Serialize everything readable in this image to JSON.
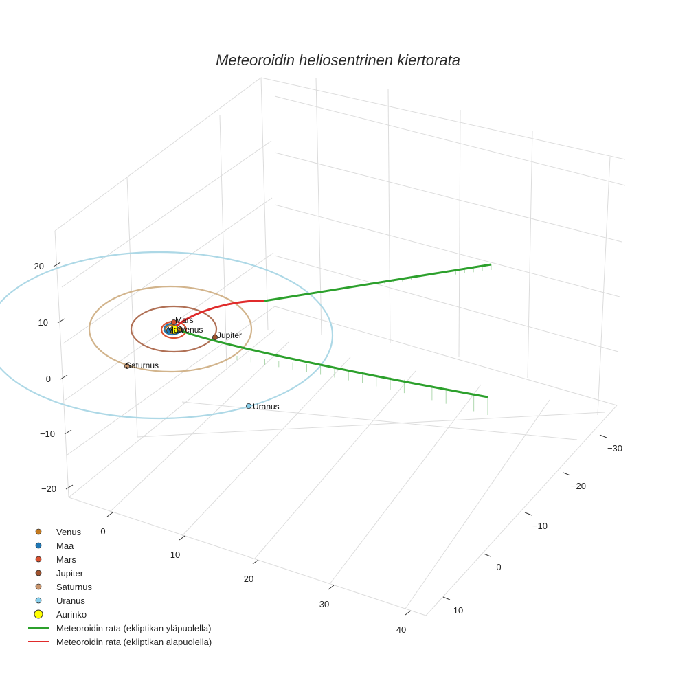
{
  "chart_data": {
    "type": "scatter3d",
    "title": "Meteoroidin heliosentrinen kiertorata",
    "axes": {
      "x": {
        "ticks": [
          0,
          10,
          20,
          30,
          40
        ]
      },
      "y": {
        "ticks": [
          -30,
          -20,
          -10,
          0,
          10
        ]
      },
      "z": {
        "ticks": [
          -20,
          -10,
          0,
          10,
          20
        ]
      }
    },
    "sun": {
      "name": "Aurinko",
      "color": "#ffff00"
    },
    "planets": [
      {
        "name": "Venus",
        "color": "#c2791f",
        "orbit_color": "#c2791f"
      },
      {
        "name": "Maa",
        "color": "#1f77b4",
        "orbit_color": "#1f77b4"
      },
      {
        "name": "Mars",
        "color": "#d9502f",
        "orbit_color": "#d9502f"
      },
      {
        "name": "Jupiter",
        "color": "#a0522d",
        "orbit_color": "#b07055"
      },
      {
        "name": "Saturnus",
        "color": "#c8956d",
        "orbit_color": "#d2b48c"
      },
      {
        "name": "Uranus",
        "color": "#87ceeb",
        "orbit_color": "#add8e6"
      }
    ],
    "trajectory": {
      "above_label": "Meteoroidin rata (ekliptikan yläpuolella)",
      "below_label": "Meteoroidin rata (ekliptikan alapuolella)",
      "above_color": "#2ca02c",
      "below_color": "#e02b2b"
    }
  },
  "legend": [
    {
      "label": "Venus",
      "kind": "dot",
      "color": "#c2791f"
    },
    {
      "label": "Maa",
      "kind": "dot",
      "color": "#1f77b4"
    },
    {
      "label": "Mars",
      "kind": "dot",
      "color": "#d9502f"
    },
    {
      "label": "Jupiter",
      "kind": "dot",
      "color": "#a0522d"
    },
    {
      "label": "Saturnus",
      "kind": "dot",
      "color": "#c8956d"
    },
    {
      "label": "Uranus",
      "kind": "dot",
      "color": "#87ceeb"
    },
    {
      "label": "Aurinko",
      "kind": "sun",
      "color": "#ffff00"
    },
    {
      "label": "Meteoroidin rata (ekliptikan yläpuolella)",
      "kind": "line",
      "color": "#2ca02c"
    },
    {
      "label": "Meteoroidin rata (ekliptikan alapuolella)",
      "kind": "line",
      "color": "#e02b2b"
    }
  ]
}
